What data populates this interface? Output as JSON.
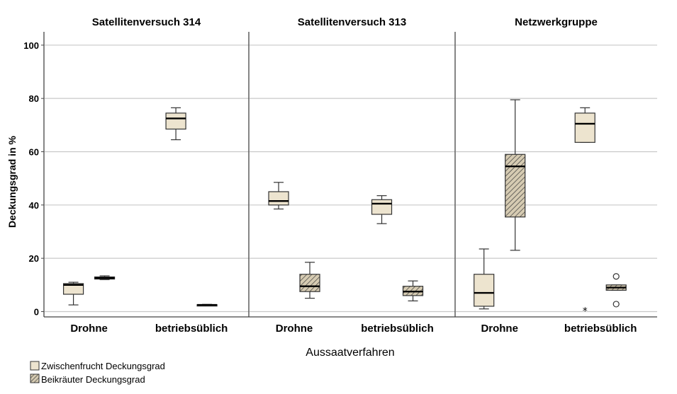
{
  "chart_data": {
    "type": "box",
    "xlabel": "Aussaatverfahren",
    "ylabel": "Deckungsgrad in %",
    "ylim": [
      -2,
      105
    ],
    "yticks": [
      0,
      20,
      40,
      60,
      80,
      100
    ],
    "grid": true,
    "legend_position": "bottom-left",
    "colors": {
      "zwischenfrucht": "#ede4cf",
      "beikraeuter": "#d6cbb2",
      "stroke": "#333333",
      "grid": "#c8c8c8"
    },
    "series": [
      {
        "name": "Zwischenfrucht Deckungsgrad",
        "fill": "plain"
      },
      {
        "name": "Beikräuter Deckungsgrad",
        "fill": "hatched"
      }
    ],
    "panels": [
      {
        "title": "Satellitenversuch 314",
        "categories": [
          "Drohne",
          "betriebsüblich"
        ],
        "boxes": [
          {
            "category": 0,
            "series": 0,
            "min": 2.5,
            "q1": 6.5,
            "median": 10,
            "q3": 10.5,
            "max": 11
          },
          {
            "category": 0,
            "series": 1,
            "min": 12,
            "q1": 12.2,
            "median": 12.6,
            "q3": 13,
            "max": 13.4
          },
          {
            "category": 1,
            "series": 0,
            "min": 64.5,
            "q1": 68.5,
            "median": 72.5,
            "q3": 74.5,
            "max": 76.5
          },
          {
            "category": 1,
            "series": 1,
            "min": 2.2,
            "q1": 2.4,
            "median": 2.5,
            "q3": 2.6,
            "max": 2.7
          }
        ],
        "outliers": []
      },
      {
        "title": "Satellitenversuch 313",
        "categories": [
          "Drohne",
          "betriebsüblich"
        ],
        "boxes": [
          {
            "category": 0,
            "series": 0,
            "min": 38.5,
            "q1": 40,
            "median": 41.5,
            "q3": 45,
            "max": 48.5
          },
          {
            "category": 0,
            "series": 1,
            "min": 5,
            "q1": 7.5,
            "median": 9.5,
            "q3": 14,
            "max": 18.5
          },
          {
            "category": 1,
            "series": 0,
            "min": 33,
            "q1": 36.5,
            "median": 40.5,
            "q3": 42,
            "max": 43.5
          },
          {
            "category": 1,
            "series": 1,
            "min": 4,
            "q1": 6,
            "median": 7.5,
            "q3": 9.5,
            "max": 11.5
          }
        ],
        "outliers": []
      },
      {
        "title": "Netzwerkgruppe",
        "categories": [
          "Drohne",
          "betriebsüblich"
        ],
        "boxes": [
          {
            "category": 0,
            "series": 0,
            "min": 1,
            "q1": 2,
            "median": 7,
            "q3": 14,
            "max": 23.5
          },
          {
            "category": 0,
            "series": 1,
            "min": 23,
            "q1": 35.5,
            "median": 54.5,
            "q3": 59,
            "max": 79.5
          },
          {
            "category": 1,
            "series": 0,
            "min": 63.5,
            "q1": 63.5,
            "median": 70.5,
            "q3": 74.5,
            "max": 76.5
          },
          {
            "category": 1,
            "series": 1,
            "min": 8,
            "q1": 8,
            "median": 9,
            "q3": 10,
            "max": 10
          }
        ],
        "outliers": [
          {
            "category": 1,
            "series": 0,
            "value": 0.2,
            "symbol": "star"
          },
          {
            "category": 1,
            "series": 1,
            "value": 13.2,
            "symbol": "circle"
          },
          {
            "category": 1,
            "series": 1,
            "value": 2.8,
            "symbol": "circle"
          }
        ]
      }
    ]
  }
}
